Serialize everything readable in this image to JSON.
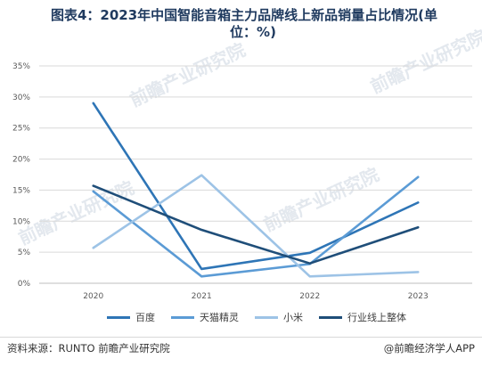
{
  "title_line1": "图表4：2023年中国智能音箱主力品牌线上新品销量占比情况(单",
  "title_line2": "位：%)",
  "source": "资料来源：RUNTO 前瞻产业研究院",
  "brand": "@前瞻经济学人APP",
  "watermark": "前瞻产业研究院",
  "chart_data": {
    "type": "line",
    "x": [
      "2020",
      "2021",
      "2022",
      "2023"
    ],
    "ylim": [
      0,
      35
    ],
    "yticks": [
      "0%",
      "5%",
      "10%",
      "15%",
      "20%",
      "25%",
      "30%",
      "35%"
    ],
    "grid": true,
    "legend_position": "bottom",
    "series": [
      {
        "name": "百度",
        "color": "#2e75b6",
        "values": [
          29.0,
          2.3,
          4.9,
          13.0
        ]
      },
      {
        "name": "天猫精灵",
        "color": "#5b9bd5",
        "values": [
          14.8,
          1.1,
          3.1,
          17.1
        ]
      },
      {
        "name": "小米",
        "color": "#9dc3e6",
        "values": [
          5.7,
          17.4,
          1.1,
          1.8
        ]
      },
      {
        "name": "行业线上整体",
        "color": "#1f4e79",
        "values": [
          15.7,
          8.6,
          3.2,
          9.0
        ]
      }
    ]
  }
}
